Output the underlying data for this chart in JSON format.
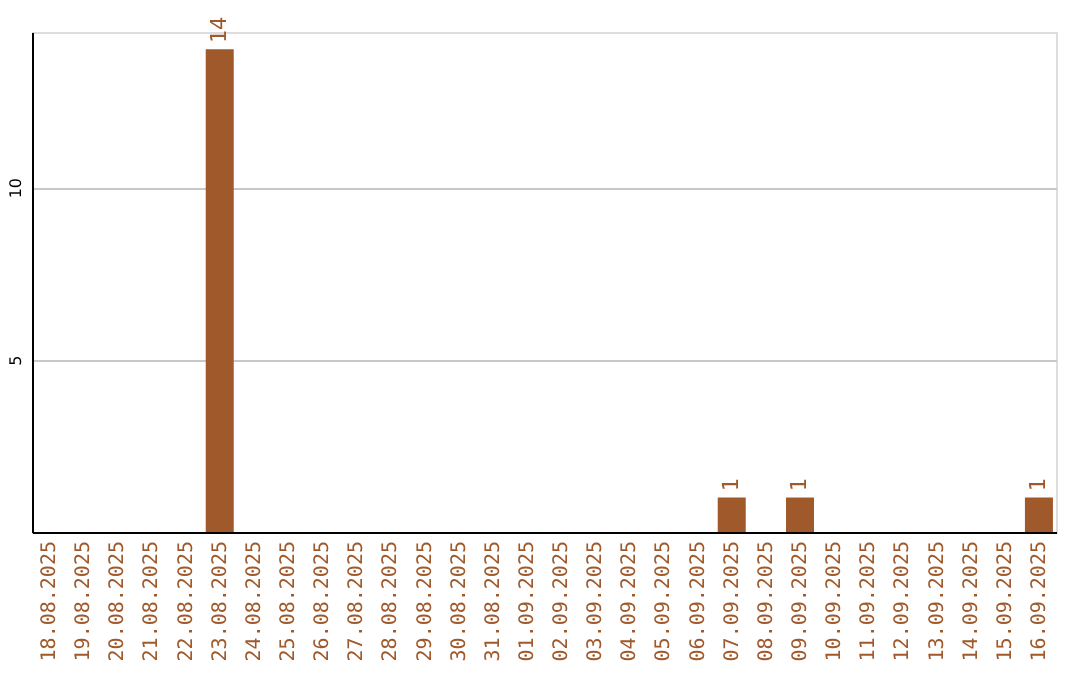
{
  "chart_data": {
    "type": "bar",
    "categories": [
      "18.08.2025",
      "19.08.2025",
      "20.08.2025",
      "21.08.2025",
      "22.08.2025",
      "23.08.2025",
      "24.08.2025",
      "25.08.2025",
      "26.08.2025",
      "27.08.2025",
      "28.08.2025",
      "29.08.2025",
      "30.08.2025",
      "31.08.2025",
      "01.09.2025",
      "02.09.2025",
      "03.09.2025",
      "04.09.2025",
      "05.09.2025",
      "06.09.2025",
      "07.09.2025",
      "08.09.2025",
      "09.09.2025",
      "10.09.2025",
      "11.09.2025",
      "12.09.2025",
      "13.09.2025",
      "14.09.2025",
      "15.09.2025",
      "16.09.2025"
    ],
    "values": [
      0,
      0,
      0,
      0,
      0,
      14,
      0,
      0,
      0,
      0,
      0,
      0,
      0,
      0,
      0,
      0,
      0,
      0,
      0,
      0,
      1,
      0,
      1,
      0,
      0,
      0,
      0,
      0,
      0,
      1
    ],
    "value_labels": [
      null,
      null,
      null,
      null,
      null,
      "14",
      null,
      null,
      null,
      null,
      null,
      null,
      null,
      null,
      null,
      null,
      null,
      null,
      null,
      null,
      "1",
      null,
      "1",
      null,
      null,
      null,
      null,
      null,
      null,
      "1"
    ],
    "color": "#a0592a",
    "ylim": [
      0,
      14.5
    ],
    "yticks": [
      5,
      10
    ],
    "grid": "y"
  }
}
